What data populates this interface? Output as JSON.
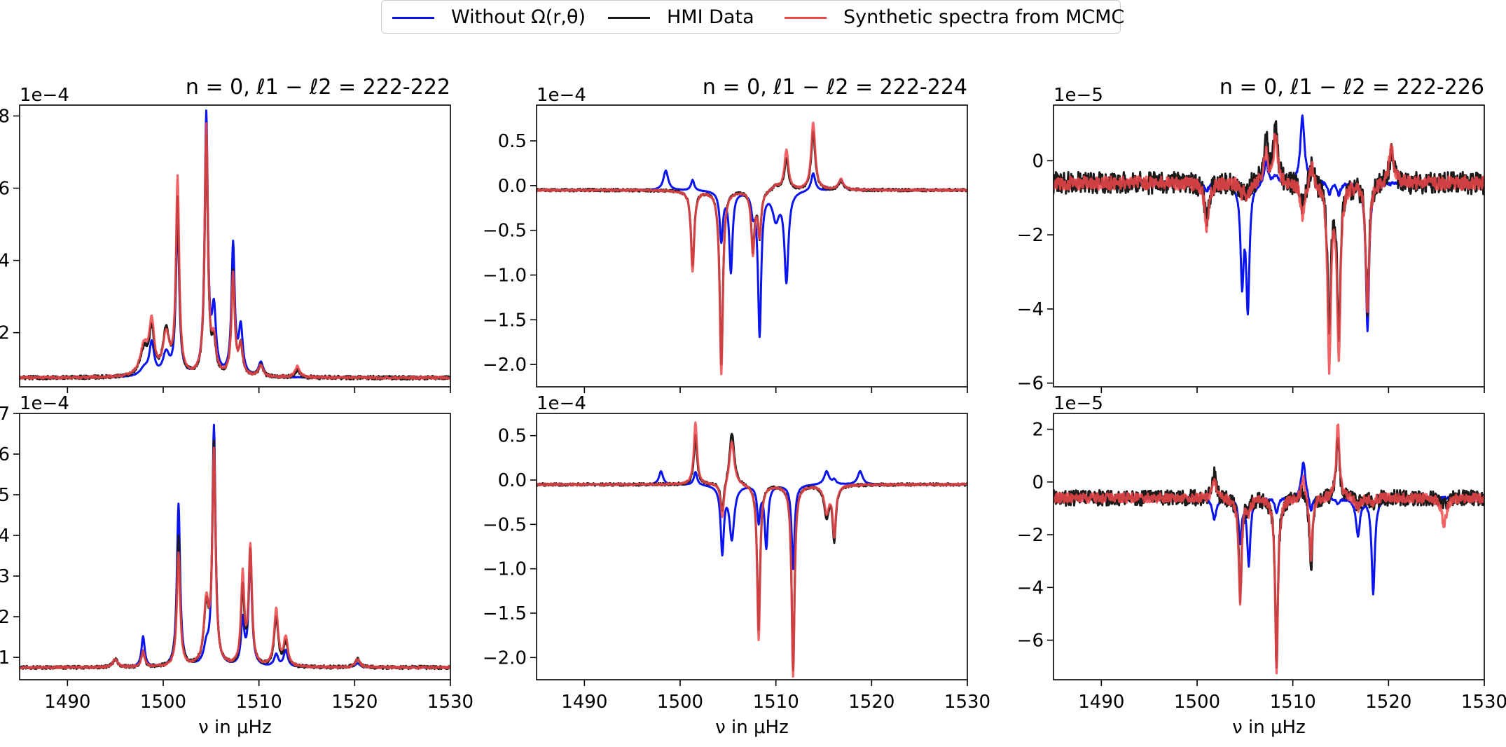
{
  "legend": {
    "items": [
      {
        "label": "Without Ω(r,θ)",
        "color": "#0a14f0"
      },
      {
        "label": "HMI Data",
        "color": "#1a1a1a"
      },
      {
        "label": "Synthetic spectra from MCMC",
        "color": "#f0484a"
      }
    ]
  },
  "colors": {
    "without": "#0a14f0",
    "hmi": "#1a1a1a",
    "synthetic": "#f0484a",
    "overlap": "#b01818"
  },
  "xlabel": "ν in μHz",
  "chart_data": [
    {
      "type": "line",
      "title": "n = 0, ℓ1 − ℓ2 = 222-222",
      "exponent": "1e−4",
      "xlim": [
        1485,
        1530
      ],
      "ylim": [
        0.5,
        8.3
      ],
      "xticks": [
        1490,
        1500,
        1510,
        1520,
        1530
      ],
      "show_xticklabels": false,
      "yticks": [
        2,
        4,
        6,
        8
      ],
      "ytick_labels": [
        "2",
        "4",
        "6",
        "8"
      ],
      "baseline": 0.75,
      "noise": 0.05,
      "peaks": [
        {
          "x": 1498.0,
          "without": 0.2,
          "hmi": 0.7,
          "synthetic": 0.8,
          "w": 0.5
        },
        {
          "x": 1498.8,
          "without": 0.9,
          "hmi": 1.2,
          "synthetic": 1.4,
          "w": 0.3
        },
        {
          "x": 1500.3,
          "without": 0.6,
          "hmi": 1.2,
          "synthetic": 1.1,
          "w": 0.4
        },
        {
          "x": 1501.5,
          "without": 4.4,
          "hmi": 4.8,
          "synthetic": 5.4,
          "w": 0.2
        },
        {
          "x": 1504.5,
          "without": 7.2,
          "hmi": 6.6,
          "synthetic": 6.9,
          "w": 0.2
        },
        {
          "x": 1505.3,
          "without": 1.7,
          "hmi": 0.8,
          "synthetic": 0.9,
          "w": 0.25
        },
        {
          "x": 1507.3,
          "without": 3.6,
          "hmi": 2.9,
          "synthetic": 2.8,
          "w": 0.2
        },
        {
          "x": 1508.1,
          "without": 1.3,
          "hmi": 0.8,
          "synthetic": 0.8,
          "w": 0.25
        },
        {
          "x": 1510.2,
          "without": 0.4,
          "hmi": 0.3,
          "synthetic": 0.3,
          "w": 0.3
        },
        {
          "x": 1514.0,
          "without": 0.0,
          "hmi": 0.2,
          "synthetic": 0.3,
          "w": 0.3
        }
      ]
    },
    {
      "type": "line",
      "title": "n = 0, ℓ1 − ℓ2 = 222-224",
      "exponent": "1e−4",
      "xlim": [
        1485,
        1530
      ],
      "ylim": [
        -2.25,
        0.9
      ],
      "xticks": [
        1490,
        1500,
        1510,
        1520,
        1530
      ],
      "show_xticklabels": false,
      "yticks": [
        -2.0,
        -1.5,
        -1.0,
        -0.5,
        0.0,
        0.5
      ],
      "ytick_labels": [
        "−2.0",
        "−1.5",
        "−1.0",
        "−0.5",
        "0.0",
        "0.5"
      ],
      "baseline": -0.05,
      "noise": 0.015,
      "peaks": [
        {
          "x": 1498.5,
          "without": 0.22,
          "hmi": 0.0,
          "synthetic": 0.0,
          "w": 0.3
        },
        {
          "x": 1501.3,
          "without": 0.12,
          "hmi": -0.85,
          "synthetic": -0.9,
          "w": 0.2
        },
        {
          "x": 1504.3,
          "without": -0.55,
          "hmi": -1.95,
          "synthetic": -2.05,
          "w": 0.2
        },
        {
          "x": 1505.3,
          "without": -0.9,
          "hmi": 0.0,
          "synthetic": 0.0,
          "w": 0.2
        },
        {
          "x": 1507.6,
          "without": -0.2,
          "hmi": -0.65,
          "synthetic": -0.7,
          "w": 0.2
        },
        {
          "x": 1508.3,
          "without": -1.6,
          "hmi": -0.5,
          "synthetic": -0.5,
          "w": 0.2
        },
        {
          "x": 1510.0,
          "without": -0.3,
          "hmi": 0.05,
          "synthetic": 0.05,
          "w": 0.4
        },
        {
          "x": 1511.1,
          "without": -1.0,
          "hmi": 0.35,
          "synthetic": 0.45,
          "w": 0.25
        },
        {
          "x": 1513.9,
          "without": 0.2,
          "hmi": 0.65,
          "synthetic": 0.75,
          "w": 0.25
        },
        {
          "x": 1516.8,
          "without": 0.12,
          "hmi": 0.1,
          "synthetic": 0.12,
          "w": 0.3
        }
      ]
    },
    {
      "type": "line",
      "title": "n = 0, ℓ1 − ℓ2 = 222-226",
      "exponent": "1e−5",
      "xlim": [
        1485,
        1530
      ],
      "ylim": [
        -6.1,
        1.5
      ],
      "xticks": [
        1490,
        1500,
        1510,
        1520,
        1530
      ],
      "show_xticklabels": false,
      "yticks": [
        -6,
        -4,
        -2,
        0
      ],
      "ytick_labels": [
        "−6",
        "−4",
        "−2",
        "0"
      ],
      "baseline": -0.6,
      "noise": 0.3,
      "peaks": [
        {
          "x": 1501.0,
          "without": -0.2,
          "hmi": -1.0,
          "synthetic": -1.2,
          "w": 0.25
        },
        {
          "x": 1504.7,
          "without": -2.6,
          "hmi": -0.3,
          "synthetic": -0.3,
          "w": 0.2
        },
        {
          "x": 1505.3,
          "without": -3.3,
          "hmi": -0.3,
          "synthetic": -0.4,
          "w": 0.2
        },
        {
          "x": 1507.2,
          "without": 0.6,
          "hmi": 1.3,
          "synthetic": 0.8,
          "w": 0.25
        },
        {
          "x": 1508.2,
          "without": 0.2,
          "hmi": 1.5,
          "synthetic": 1.3,
          "w": 0.25
        },
        {
          "x": 1511.0,
          "without": 1.8,
          "hmi": -0.7,
          "synthetic": -0.9,
          "w": 0.25
        },
        {
          "x": 1512.0,
          "without": 0.3,
          "hmi": 0.6,
          "synthetic": 0.6,
          "w": 0.25
        },
        {
          "x": 1513.8,
          "without": -0.3,
          "hmi": -3.8,
          "synthetic": -4.9,
          "w": 0.2
        },
        {
          "x": 1514.8,
          "without": -0.3,
          "hmi": -4.0,
          "synthetic": -4.6,
          "w": 0.2
        },
        {
          "x": 1517.8,
          "without": -4.0,
          "hmi": -3.3,
          "synthetic": -3.5,
          "w": 0.2
        },
        {
          "x": 1520.3,
          "without": 0.0,
          "hmi": 0.8,
          "synthetic": 1.0,
          "w": 0.3
        }
      ]
    },
    {
      "type": "line",
      "title": "",
      "exponent": "1e−4",
      "xlim": [
        1485,
        1530
      ],
      "ylim": [
        0.45,
        7.0
      ],
      "xticks": [
        1490,
        1500,
        1510,
        1520,
        1530
      ],
      "show_xticklabels": true,
      "xtick_labels": [
        "1490",
        "1500",
        "1510",
        "1520",
        "1530"
      ],
      "yticks": [
        1,
        2,
        3,
        4,
        5,
        6,
        7
      ],
      "ytick_labels": [
        "1",
        "2",
        "3",
        "4",
        "5",
        "6",
        "7"
      ],
      "baseline": 0.75,
      "noise": 0.04,
      "peaks": [
        {
          "x": 1495.0,
          "without": 0.2,
          "hmi": 0.2,
          "synthetic": 0.2,
          "w": 0.3
        },
        {
          "x": 1497.9,
          "without": 0.75,
          "hmi": 0.4,
          "synthetic": 0.4,
          "w": 0.2
        },
        {
          "x": 1501.6,
          "without": 4.0,
          "hmi": 3.2,
          "synthetic": 2.8,
          "w": 0.2
        },
        {
          "x": 1504.5,
          "without": 0.4,
          "hmi": 1.4,
          "synthetic": 1.5,
          "w": 0.3
        },
        {
          "x": 1505.3,
          "without": 5.9,
          "hmi": 5.4,
          "synthetic": 5.2,
          "w": 0.2
        },
        {
          "x": 1508.3,
          "without": 1.1,
          "hmi": 1.9,
          "synthetic": 2.2,
          "w": 0.2
        },
        {
          "x": 1509.1,
          "without": 2.7,
          "hmi": 2.8,
          "synthetic": 2.9,
          "w": 0.2
        },
        {
          "x": 1511.8,
          "without": 0.3,
          "hmi": 1.2,
          "synthetic": 1.4,
          "w": 0.25
        },
        {
          "x": 1512.8,
          "without": 0.4,
          "hmi": 0.6,
          "synthetic": 0.7,
          "w": 0.25
        },
        {
          "x": 1520.3,
          "without": 0.1,
          "hmi": 0.2,
          "synthetic": 0.2,
          "w": 0.3
        }
      ]
    },
    {
      "type": "line",
      "title": "",
      "exponent": "1e−4",
      "xlim": [
        1485,
        1530
      ],
      "ylim": [
        -2.25,
        0.75
      ],
      "xticks": [
        1490,
        1500,
        1510,
        1520,
        1530
      ],
      "show_xticklabels": true,
      "xtick_labels": [
        "1490",
        "1500",
        "1510",
        "1520",
        "1530"
      ],
      "yticks": [
        -2.0,
        -1.5,
        -1.0,
        -0.5,
        0.0,
        0.5
      ],
      "ytick_labels": [
        "−2.0",
        "−1.5",
        "−1.0",
        "−0.5",
        "0.0",
        "0.5"
      ],
      "baseline": -0.05,
      "noise": 0.015,
      "peaks": [
        {
          "x": 1498.0,
          "without": 0.15,
          "hmi": 0.0,
          "synthetic": 0.0,
          "w": 0.25
        },
        {
          "x": 1501.6,
          "without": 0.15,
          "hmi": 0.55,
          "synthetic": 0.7,
          "w": 0.2
        },
        {
          "x": 1504.4,
          "without": -0.75,
          "hmi": -0.35,
          "synthetic": -0.4,
          "w": 0.2
        },
        {
          "x": 1505.4,
          "without": -0.6,
          "hmi": 0.6,
          "synthetic": 0.5,
          "w": 0.3
        },
        {
          "x": 1508.2,
          "without": -0.4,
          "hmi": -1.65,
          "synthetic": -1.75,
          "w": 0.18
        },
        {
          "x": 1509.0,
          "without": -0.7,
          "hmi": 0.0,
          "synthetic": 0.0,
          "w": 0.2
        },
        {
          "x": 1511.8,
          "without": -0.95,
          "hmi": -2.1,
          "synthetic": -2.15,
          "w": 0.18
        },
        {
          "x": 1515.3,
          "without": 0.15,
          "hmi": -0.35,
          "synthetic": -0.3,
          "w": 0.3
        },
        {
          "x": 1516.1,
          "without": 0.05,
          "hmi": -0.6,
          "synthetic": -0.55,
          "w": 0.2
        },
        {
          "x": 1518.8,
          "without": 0.15,
          "hmi": 0.0,
          "synthetic": 0.0,
          "w": 0.3
        }
      ]
    },
    {
      "type": "line",
      "title": "",
      "exponent": "1e−5",
      "xlim": [
        1485,
        1530
      ],
      "ylim": [
        -7.5,
        2.6
      ],
      "xticks": [
        1490,
        1500,
        1510,
        1520,
        1530
      ],
      "show_xticklabels": true,
      "xtick_labels": [
        "1490",
        "1500",
        "1510",
        "1520",
        "1530"
      ],
      "yticks": [
        -6,
        -4,
        -2,
        0,
        2
      ],
      "ytick_labels": [
        "−6",
        "−4",
        "−2",
        "0",
        "2"
      ],
      "baseline": -0.6,
      "noise": 0.3,
      "peaks": [
        {
          "x": 1501.8,
          "without": -0.8,
          "hmi": 0.9,
          "synthetic": 0.7,
          "w": 0.25
        },
        {
          "x": 1504.5,
          "without": -1.6,
          "hmi": -3.8,
          "synthetic": -4.0,
          "w": 0.18
        },
        {
          "x": 1505.4,
          "without": -2.5,
          "hmi": -0.4,
          "synthetic": -0.5,
          "w": 0.2
        },
        {
          "x": 1508.3,
          "without": -0.6,
          "hmi": -6.4,
          "synthetic": -6.5,
          "w": 0.18
        },
        {
          "x": 1511.1,
          "without": 1.4,
          "hmi": 0.4,
          "synthetic": 0.8,
          "w": 0.25
        },
        {
          "x": 1511.9,
          "without": -0.6,
          "hmi": -2.7,
          "synthetic": -2.4,
          "w": 0.18
        },
        {
          "x": 1514.7,
          "without": -0.2,
          "hmi": 2.4,
          "synthetic": 2.8,
          "w": 0.2
        },
        {
          "x": 1516.8,
          "without": -1.4,
          "hmi": -0.3,
          "synthetic": -0.4,
          "w": 0.25
        },
        {
          "x": 1518.4,
          "without": -3.6,
          "hmi": -0.3,
          "synthetic": -0.3,
          "w": 0.2
        },
        {
          "x": 1525.8,
          "without": 0.0,
          "hmi": -0.3,
          "synthetic": -1.0,
          "w": 0.3
        }
      ]
    }
  ]
}
